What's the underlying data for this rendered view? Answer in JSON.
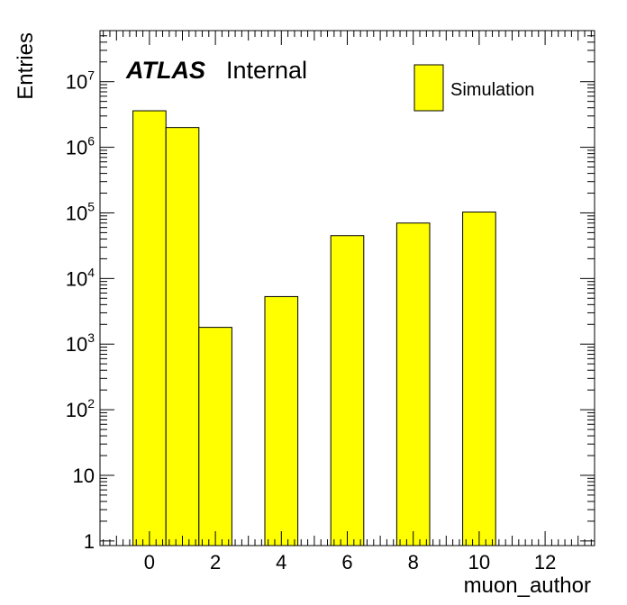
{
  "chart_data": {
    "type": "bar",
    "title": "",
    "xlabel": "muon_author",
    "ylabel": "Entries",
    "x_tick_labels": [
      "0",
      "2",
      "4",
      "6",
      "8",
      "10",
      "12"
    ],
    "y_tick_labels": [
      {
        "base": "1",
        "exp": ""
      },
      {
        "base": "10",
        "exp": ""
      },
      {
        "base": "10",
        "exp": "2"
      },
      {
        "base": "10",
        "exp": "3"
      },
      {
        "base": "10",
        "exp": "4"
      },
      {
        "base": "10",
        "exp": "5"
      },
      {
        "base": "10",
        "exp": "6"
      },
      {
        "base": "10",
        "exp": "7"
      }
    ],
    "xlim": [
      -1.5,
      13.5
    ],
    "ylim": [
      0.85,
      60000000
    ],
    "y_scale": "log",
    "bar_width": 1,
    "x": [
      0,
      1,
      2,
      4,
      6,
      8,
      10
    ],
    "values": [
      3600000,
      2000000,
      1800,
      5300,
      45000,
      70000,
      103000
    ],
    "series": [
      {
        "name": "Simulation",
        "color": "#ffff00"
      }
    ],
    "legend_position": "top-right",
    "grid": false,
    "atlas_label": "ATLAS",
    "atlas_status": "Internal"
  }
}
